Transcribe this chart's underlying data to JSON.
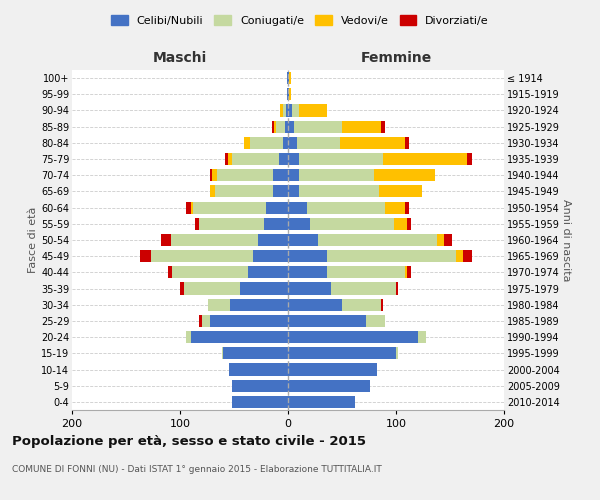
{
  "age_groups": [
    "0-4",
    "5-9",
    "10-14",
    "15-19",
    "20-24",
    "25-29",
    "30-34",
    "35-39",
    "40-44",
    "45-49",
    "50-54",
    "55-59",
    "60-64",
    "65-69",
    "70-74",
    "75-79",
    "80-84",
    "85-89",
    "90-94",
    "95-99",
    "100+"
  ],
  "birth_years": [
    "2010-2014",
    "2005-2009",
    "2000-2004",
    "1995-1999",
    "1990-1994",
    "1985-1989",
    "1980-1984",
    "1975-1979",
    "1970-1974",
    "1965-1969",
    "1960-1964",
    "1955-1959",
    "1950-1954",
    "1945-1949",
    "1940-1944",
    "1935-1939",
    "1930-1934",
    "1925-1929",
    "1920-1924",
    "1915-1919",
    "≤ 1914"
  ],
  "colors": {
    "celibi": "#4472c4",
    "coniugati": "#c5d9a0",
    "vedovi": "#ffc000",
    "divorziati": "#cc0000"
  },
  "maschi": {
    "celibi": [
      52,
      52,
      55,
      60,
      90,
      72,
      54,
      44,
      37,
      32,
      28,
      22,
      20,
      14,
      14,
      8,
      5,
      3,
      2,
      1,
      1
    ],
    "coniugati": [
      0,
      0,
      0,
      1,
      4,
      8,
      20,
      52,
      70,
      95,
      80,
      60,
      68,
      54,
      52,
      44,
      30,
      8,
      3,
      0,
      0
    ],
    "vedovi": [
      0,
      0,
      0,
      0,
      0,
      0,
      0,
      0,
      0,
      0,
      0,
      0,
      2,
      4,
      4,
      4,
      6,
      2,
      2,
      0,
      0
    ],
    "divorziati": [
      0,
      0,
      0,
      0,
      0,
      2,
      0,
      4,
      4,
      10,
      10,
      4,
      4,
      0,
      2,
      2,
      0,
      2,
      0,
      0,
      0
    ]
  },
  "femmine": {
    "celibi": [
      62,
      76,
      82,
      100,
      120,
      72,
      50,
      40,
      36,
      36,
      28,
      20,
      18,
      10,
      10,
      10,
      8,
      6,
      4,
      1,
      1
    ],
    "coniugati": [
      0,
      0,
      0,
      2,
      8,
      18,
      36,
      60,
      72,
      120,
      110,
      78,
      72,
      74,
      70,
      78,
      40,
      44,
      6,
      0,
      0
    ],
    "vedovi": [
      0,
      0,
      0,
      0,
      0,
      0,
      0,
      0,
      2,
      6,
      6,
      12,
      18,
      40,
      56,
      78,
      60,
      36,
      26,
      2,
      2
    ],
    "divorziati": [
      0,
      0,
      0,
      0,
      0,
      0,
      2,
      2,
      4,
      8,
      8,
      4,
      4,
      0,
      0,
      4,
      4,
      4,
      0,
      0,
      0
    ]
  },
  "title": "Popolazione per età, sesso e stato civile - 2015",
  "subtitle": "COMUNE DI FONNI (NU) - Dati ISTAT 1° gennaio 2015 - Elaborazione TUTTITALIA.IT",
  "ylabel_left": "Fasce di età",
  "ylabel_right": "Anni di nascita",
  "xlabel_left": "Maschi",
  "xlabel_right": "Femmine",
  "xlim": 200,
  "legend_labels": [
    "Celibi/Nubili",
    "Coniugati/e",
    "Vedovi/e",
    "Divorziati/e"
  ],
  "bg_color": "#f0f0f0",
  "plot_bg_color": "#ffffff"
}
